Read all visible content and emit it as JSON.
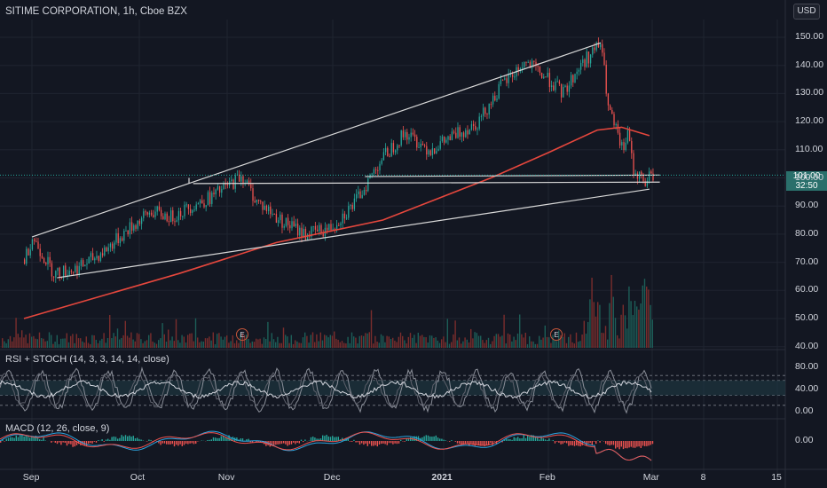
{
  "header": {
    "title": "SITIME CORPORATION, 1h, Cboe BZX",
    "currency": "USD"
  },
  "price_tag": {
    "price": "101.00",
    "countdown": "32:50"
  },
  "indicators": {
    "rsi_label": "RSI + STOCH (14, 3, 3, 14, 14, close)",
    "macd_label": "MACD (12, 26, close, 9)"
  },
  "earnings_marker": "E",
  "colors": {
    "background": "#131722",
    "up": "#26a69a",
    "down": "#ef5350",
    "ma": "#e5473d",
    "trendline": "#d8d8d8",
    "price_tag": "#2a6f6b"
  },
  "chart_data": {
    "type": "candlestick",
    "ylim": [
      40,
      155
    ],
    "y_ticks": [
      "150.00",
      "140.00",
      "130.00",
      "120.00",
      "110.00",
      "100.00",
      "90.00",
      "80.00",
      "70.00",
      "60.00",
      "50.00",
      "40.00"
    ],
    "x_ticks": [
      "Sep",
      "Oct",
      "Nov",
      "Dec",
      "2021",
      "Feb",
      "Mar",
      "8",
      "15"
    ],
    "last_price": 101.0,
    "price_path": [
      [
        "Aug 25",
        71
      ],
      [
        "Sep 1",
        79
      ],
      [
        "Sep 7",
        66
      ],
      [
        "Sep 14",
        68
      ],
      [
        "Sep 21",
        74
      ],
      [
        "Sep 28",
        82
      ],
      [
        "Oct 5",
        88
      ],
      [
        "Oct 12",
        86
      ],
      [
        "Oct 19",
        90
      ],
      [
        "Oct 26",
        93
      ],
      [
        "Nov 2",
        98
      ],
      [
        "Nov 5",
        101
      ],
      [
        "Nov 9",
        92
      ],
      [
        "Nov 16",
        85
      ],
      [
        "Nov 23",
        80
      ],
      [
        "Nov 30",
        82
      ],
      [
        "Dec 7",
        91
      ],
      [
        "Dec 14",
        106
      ],
      [
        "Dec 21",
        116
      ],
      [
        "Dec 28",
        110
      ],
      [
        "Jan 4",
        115
      ],
      [
        "Jan 11",
        120
      ],
      [
        "Jan 18",
        133
      ],
      [
        "Jan 25",
        141
      ],
      [
        "Feb 1",
        135
      ],
      [
        "Feb 5",
        130
      ],
      [
        "Feb 10",
        140
      ],
      [
        "Feb 16",
        148
      ],
      [
        "Feb 18",
        125
      ],
      [
        "Feb 22",
        110
      ],
      [
        "Feb 24",
        116
      ],
      [
        "Feb 25",
        103
      ],
      [
        "Mar 1",
        98
      ],
      [
        "Mar 2",
        101
      ]
    ],
    "moving_average": [
      [
        "Aug 25",
        50
      ],
      [
        "Sep 15",
        56
      ],
      [
        "Oct 15",
        66
      ],
      [
        "Nov 15",
        77
      ],
      [
        "Dec 15",
        85
      ],
      [
        "Jan 15",
        100
      ],
      [
        "Feb 1",
        109
      ],
      [
        "Feb 15",
        117
      ],
      [
        "Feb 22",
        118
      ],
      [
        "Mar 2",
        115
      ]
    ],
    "trendlines": [
      {
        "from": [
          "Sep 1",
          79
        ],
        "to": [
          "Feb 16",
          148
        ]
      },
      {
        "from": [
          "Sep 8",
          64.5
        ],
        "to": [
          "Mar 2",
          96
        ]
      },
      {
        "from": [
          "Oct 20",
          98
        ],
        "to": [
          "Mar 5",
          98.5
        ]
      },
      {
        "from": [
          "Dec 10",
          100.5
        ],
        "to": [
          "Mar 5",
          101
        ]
      }
    ],
    "volume_ylim_note": "volume bars drawn along price-pane bottom",
    "rsi": {
      "levels": [
        80,
        70,
        40,
        20
      ],
      "ticks": [
        "80.00",
        "40.00",
        "0.00"
      ]
    },
    "macd": {
      "ticks": [
        "0.00"
      ]
    },
    "earnings_dates": [
      "Nov 4",
      "Feb 3"
    ]
  }
}
